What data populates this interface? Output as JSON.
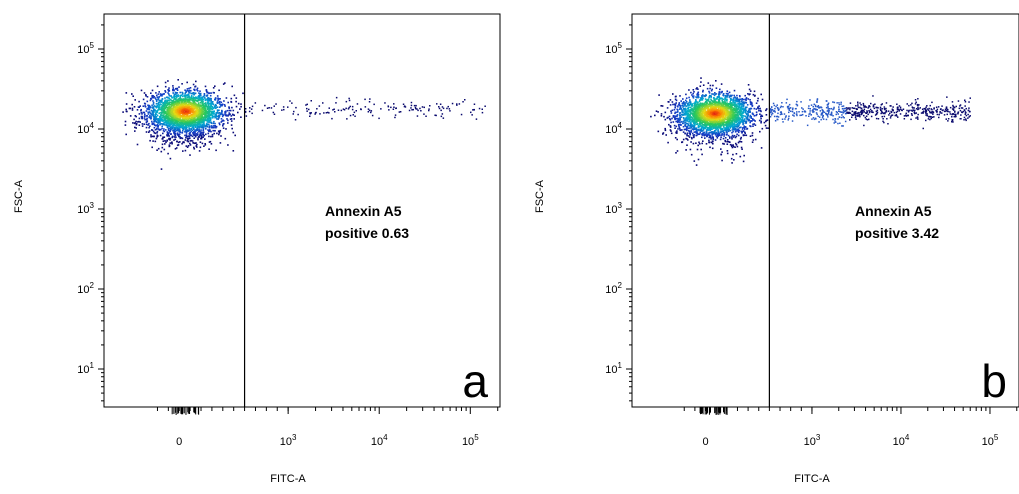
{
  "chart_data": [
    {
      "type": "scatter",
      "panel_label": "a",
      "xlabel": "FITC-A",
      "ylabel": "FSC-A",
      "x_scale": "biexponential",
      "y_scale": "log",
      "xlim": [
        -200,
        200000
      ],
      "ylim": [
        3,
        200000
      ],
      "x_ticks": [
        "0",
        "10^3",
        "10^4",
        "10^5"
      ],
      "y_ticks": [
        "10^1",
        "10^2",
        "10^3",
        "10^4",
        "10^5"
      ],
      "gate_x": 600,
      "annotation": [
        "Annexin A5",
        "positive 0.63"
      ],
      "positive_percent": 0.63,
      "main_population": {
        "x_center": 50,
        "y_center": 17000
      },
      "tail_y_center": 18000,
      "tail_x_end": 150000,
      "grid": false
    },
    {
      "type": "scatter",
      "panel_label": "b",
      "xlabel": "FITC-A",
      "ylabel": "FSC-A",
      "x_scale": "biexponential",
      "y_scale": "log",
      "xlim": [
        -200,
        200000
      ],
      "ylim": [
        3,
        200000
      ],
      "x_ticks": [
        "0",
        "10^3",
        "10^4",
        "10^5"
      ],
      "y_ticks": [
        "10^1",
        "10^2",
        "10^3",
        "10^4",
        "10^5"
      ],
      "gate_x": 600,
      "annotation": [
        "Annexin A5",
        "positive 3.42"
      ],
      "positive_percent": 3.42,
      "main_population": {
        "x_center": 80,
        "y_center": 16000
      },
      "tail_y_center": 17000,
      "tail_x_end": 60000,
      "grid": false
    }
  ]
}
